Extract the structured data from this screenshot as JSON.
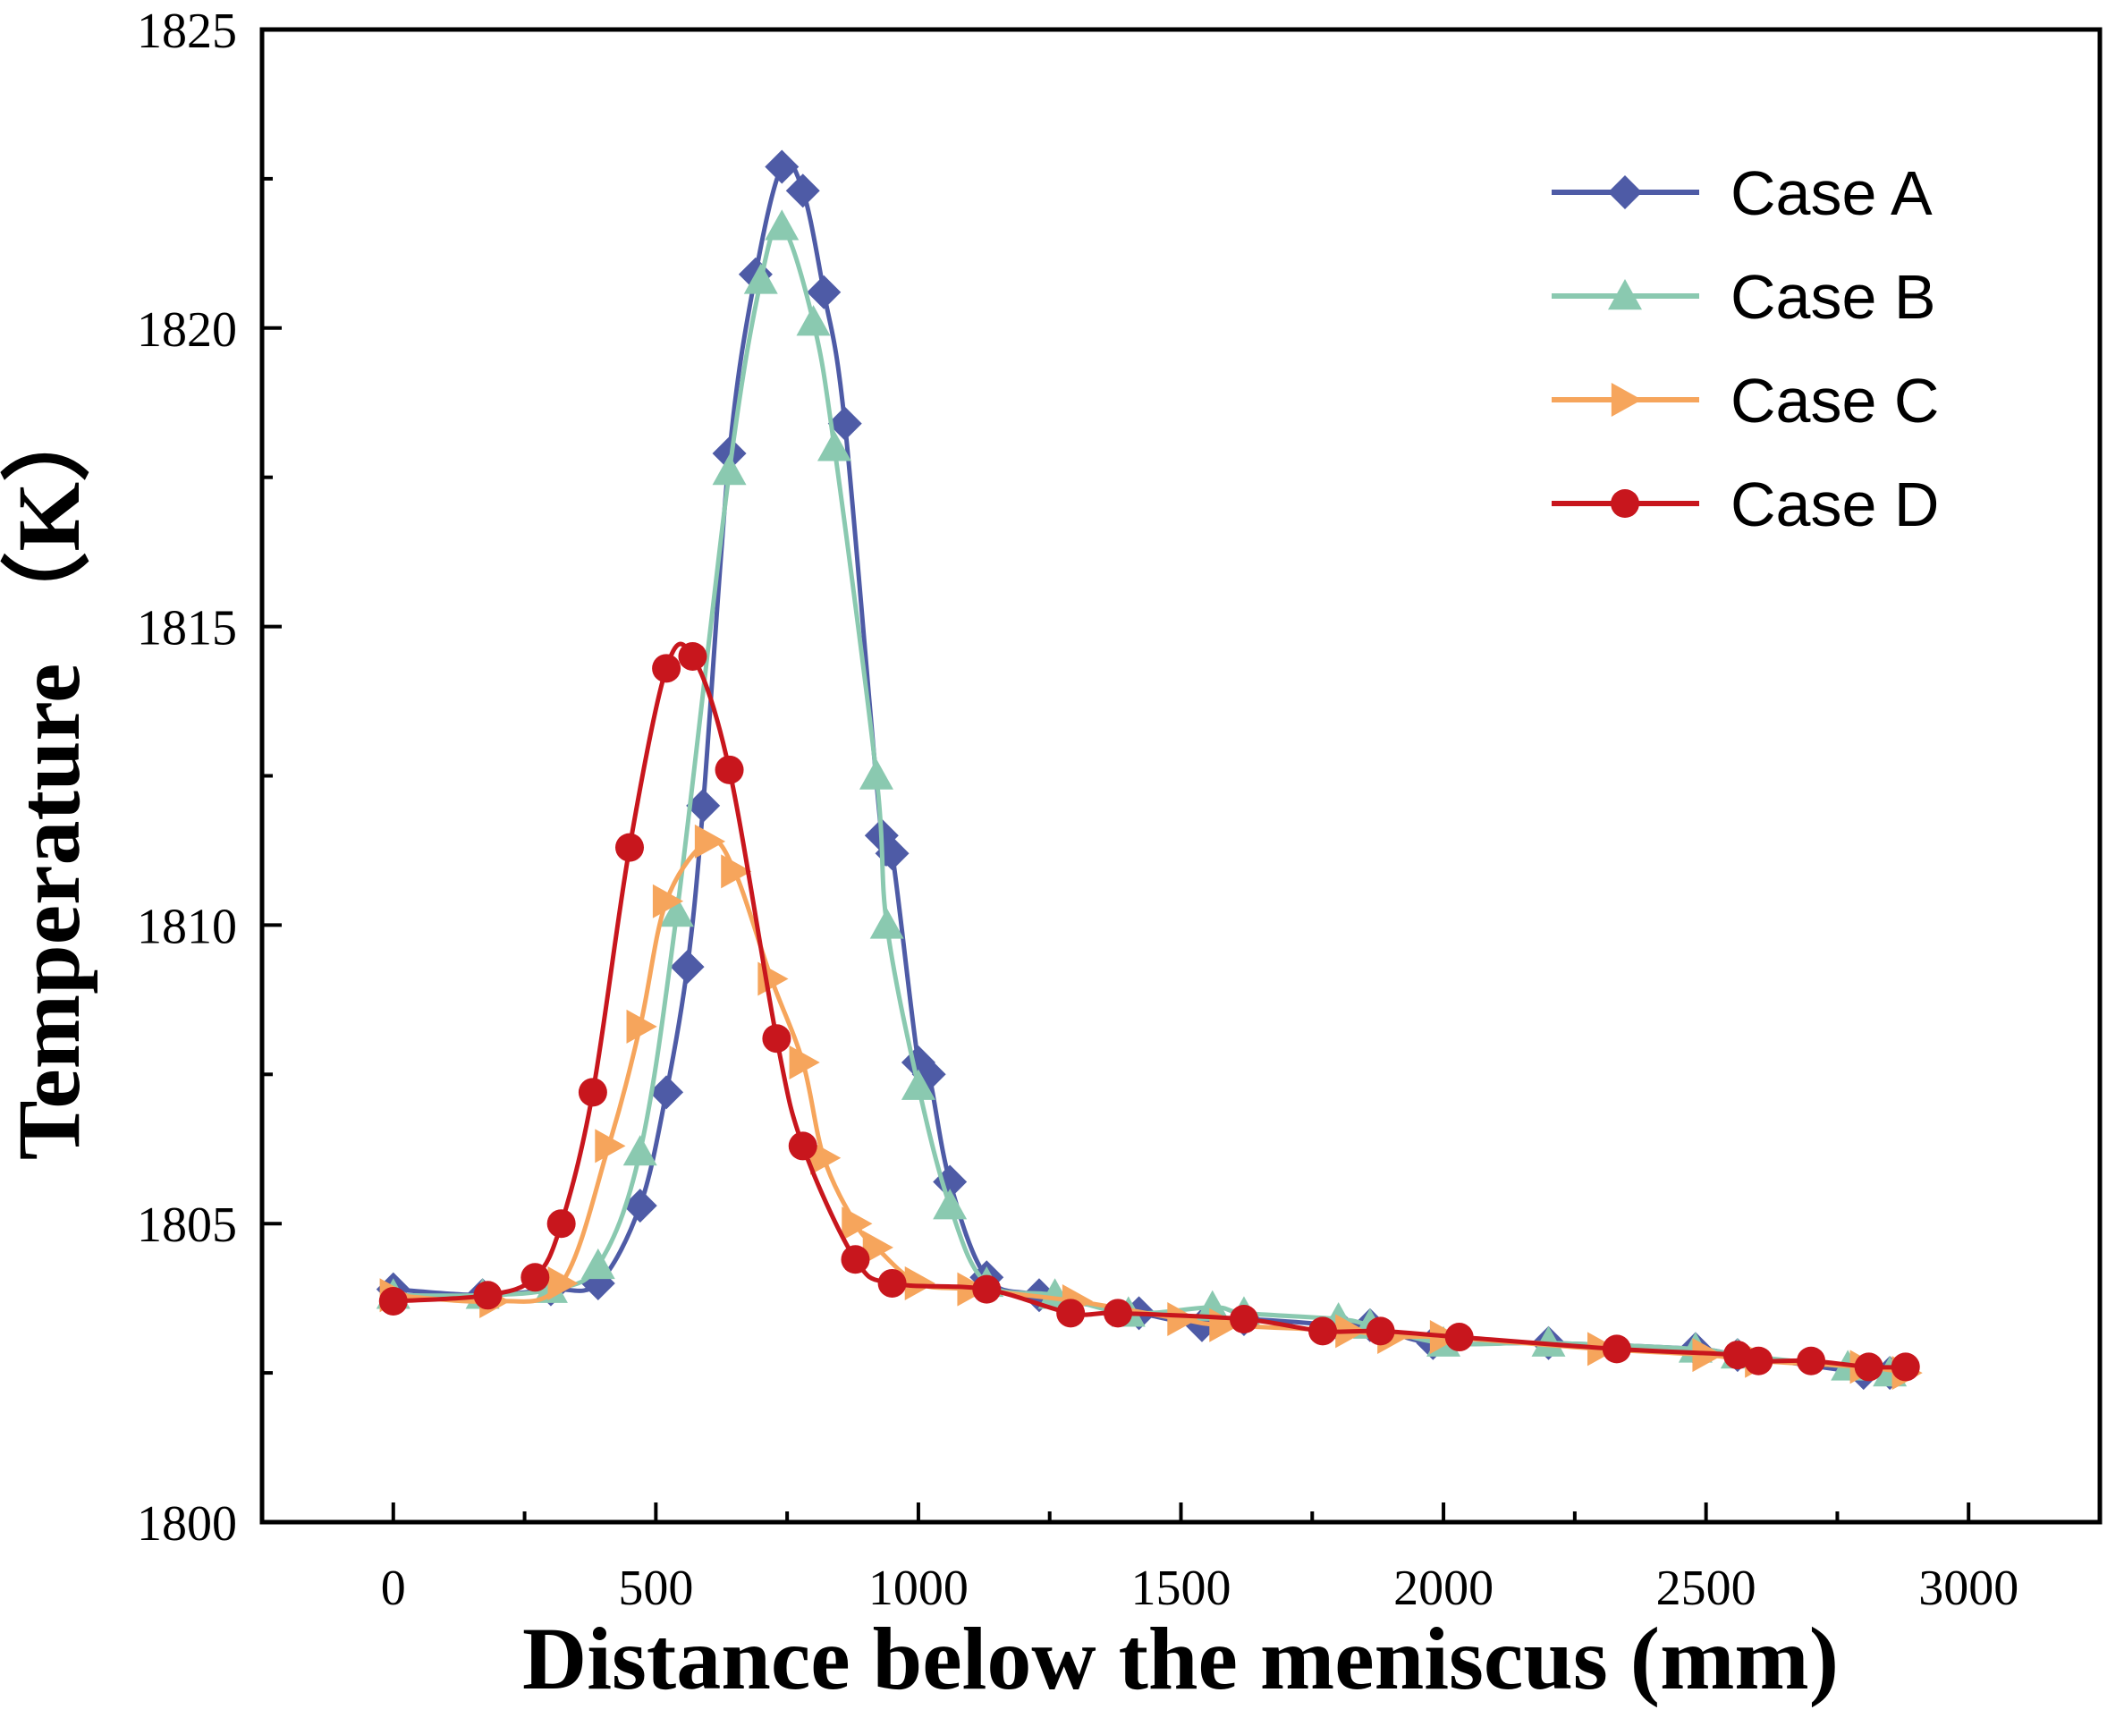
{
  "chart_data": {
    "type": "line",
    "title": "",
    "xlabel": "Distance below the meniscus (mm)",
    "ylabel": "Temperature （K）",
    "xlim": [
      -250,
      3250
    ],
    "ylim": [
      1800,
      1825
    ],
    "xticks": [
      0,
      500,
      1000,
      1500,
      2000,
      2500,
      3000
    ],
    "yticks": [
      1800,
      1805,
      1810,
      1815,
      1820,
      1825
    ],
    "xtick_labels": [
      "0",
      "500",
      "1000",
      "1500",
      "2000",
      "2500",
      "3000"
    ],
    "ytick_labels": [
      "1800",
      "1805",
      "1810",
      "1815",
      "1820",
      "1825"
    ],
    "grid": false,
    "legend_position": "top-right",
    "series": [
      {
        "name": "Case A",
        "color": "#4E5BA6",
        "marker": "diamond",
        "x": [
          0,
          170,
          300,
          390,
          470,
          520,
          560,
          590,
          640,
          690,
          740,
          780,
          820,
          860,
          930,
          950,
          1000,
          1020,
          1060,
          1130,
          1230,
          1420,
          1540,
          1620,
          1800,
          1860,
          1980,
          2200,
          2480,
          2560,
          2800,
          2850
        ],
        "y": [
          1803.9,
          1803.8,
          1803.9,
          1804.0,
          1805.3,
          1807.2,
          1809.3,
          1812.0,
          1817.9,
          1820.9,
          1822.7,
          1822.3,
          1820.6,
          1818.4,
          1811.5,
          1811.2,
          1807.7,
          1807.5,
          1805.7,
          1804.1,
          1803.8,
          1803.5,
          1803.3,
          1803.4,
          1803.3,
          1803.3,
          1803.0,
          1803.0,
          1802.9,
          1802.8,
          1802.5,
          1802.5
        ]
      },
      {
        "name": "Case B",
        "color": "#8AC9B0",
        "marker": "triangle",
        "x": [
          0,
          170,
          300,
          390,
          470,
          540,
          640,
          700,
          740,
          800,
          840,
          920,
          940,
          1000,
          1060,
          1130,
          1260,
          1400,
          1560,
          1620,
          1800,
          1860,
          2000,
          2200,
          2480,
          2560,
          2770,
          2850
        ],
        "y": [
          1803.8,
          1803.8,
          1803.9,
          1804.3,
          1806.2,
          1810.2,
          1817.6,
          1820.8,
          1821.7,
          1820.1,
          1818.0,
          1812.5,
          1810.0,
          1807.3,
          1805.3,
          1804.0,
          1803.8,
          1803.5,
          1803.6,
          1803.5,
          1803.4,
          1803.3,
          1803.0,
          1803.0,
          1802.9,
          1802.8,
          1802.6,
          1802.5
        ]
      },
      {
        "name": "Case C",
        "color": "#F6A55C",
        "marker": "triangle-right",
        "x": [
          0,
          190,
          320,
          410,
          470,
          520,
          600,
          650,
          720,
          780,
          820,
          880,
          920,
          1000,
          1100,
          1300,
          1500,
          1580,
          1820,
          1900,
          2000,
          2300,
          2500,
          2600,
          2800,
          2880
        ],
        "y": [
          1803.8,
          1803.7,
          1804.0,
          1806.3,
          1808.3,
          1810.4,
          1811.4,
          1810.9,
          1809.1,
          1807.7,
          1806.1,
          1805.0,
          1804.6,
          1804.0,
          1803.9,
          1803.7,
          1803.4,
          1803.3,
          1803.2,
          1803.1,
          1803.1,
          1802.9,
          1802.8,
          1802.7,
          1802.6,
          1802.5
        ]
      },
      {
        "name": "Case D",
        "color": "#C8161D",
        "marker": "circle",
        "x": [
          0,
          180,
          270,
          320,
          380,
          450,
          520,
          570,
          640,
          730,
          780,
          880,
          950,
          1130,
          1290,
          1380,
          1620,
          1770,
          1880,
          2030,
          2330,
          2560,
          2600,
          2700,
          2810,
          2880
        ],
        "y": [
          1803.7,
          1803.8,
          1804.1,
          1805.0,
          1807.2,
          1811.3,
          1814.3,
          1814.5,
          1812.6,
          1808.1,
          1806.3,
          1804.4,
          1804.0,
          1803.9,
          1803.5,
          1803.5,
          1803.4,
          1803.2,
          1803.2,
          1803.1,
          1802.9,
          1802.8,
          1802.7,
          1802.7,
          1802.6,
          1802.6
        ]
      }
    ]
  }
}
